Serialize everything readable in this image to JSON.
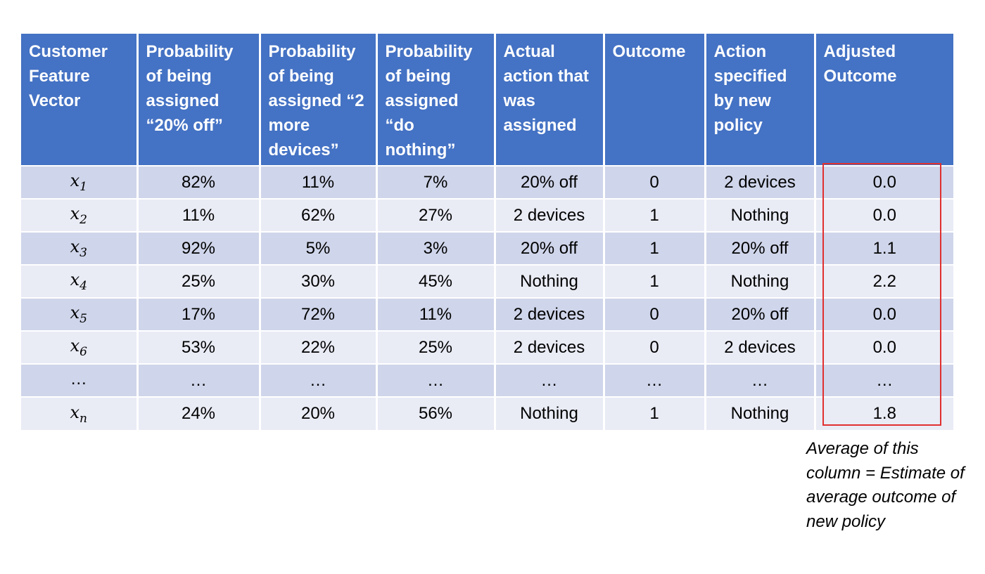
{
  "table": {
    "headers": [
      "Customer Feature Vector",
      "Probability of being assigned “20% off”",
      "Probability of being assigned “2 more devices”",
      "Probability of being assigned “do nothing”",
      "Actual action that was assigned",
      "Outcome",
      "Action specified by new policy",
      "Adjusted Outcome"
    ],
    "rows": [
      {
        "feature": {
          "var": "x",
          "sub": "1"
        },
        "p_20off": "82%",
        "p_2devices": "11%",
        "p_nothing": "7%",
        "actual_action": "20% off",
        "outcome": "0",
        "new_policy_action": "2 devices",
        "adjusted_outcome": "0.0"
      },
      {
        "feature": {
          "var": "x",
          "sub": "2"
        },
        "p_20off": "11%",
        "p_2devices": "62%",
        "p_nothing": "27%",
        "actual_action": "2 devices",
        "outcome": "1",
        "new_policy_action": "Nothing",
        "adjusted_outcome": "0.0"
      },
      {
        "feature": {
          "var": "x",
          "sub": "3"
        },
        "p_20off": "92%",
        "p_2devices": "5%",
        "p_nothing": "3%",
        "actual_action": "20% off",
        "outcome": "1",
        "new_policy_action": "20% off",
        "adjusted_outcome": "1.1"
      },
      {
        "feature": {
          "var": "x",
          "sub": "4"
        },
        "p_20off": "25%",
        "p_2devices": "30%",
        "p_nothing": "45%",
        "actual_action": "Nothing",
        "outcome": "1",
        "new_policy_action": "Nothing",
        "adjusted_outcome": "2.2"
      },
      {
        "feature": {
          "var": "x",
          "sub": "5"
        },
        "p_20off": "17%",
        "p_2devices": "72%",
        "p_nothing": "11%",
        "actual_action": "2 devices",
        "outcome": "0",
        "new_policy_action": "20% off",
        "adjusted_outcome": "0.0"
      },
      {
        "feature": {
          "var": "x",
          "sub": "6"
        },
        "p_20off": "53%",
        "p_2devices": "22%",
        "p_nothing": "25%",
        "actual_action": "2 devices",
        "outcome": "0",
        "new_policy_action": "2 devices",
        "adjusted_outcome": "0.0"
      },
      {
        "feature": {
          "var": "…",
          "sub": ""
        },
        "p_20off": "…",
        "p_2devices": "…",
        "p_nothing": "…",
        "actual_action": "…",
        "outcome": "…",
        "new_policy_action": "…",
        "adjusted_outcome": "…"
      },
      {
        "feature": {
          "var": "x",
          "sub": "n"
        },
        "p_20off": "24%",
        "p_2devices": "20%",
        "p_nothing": "56%",
        "actual_action": "Nothing",
        "outcome": "1",
        "new_policy_action": "Nothing",
        "adjusted_outcome": "1.8"
      }
    ]
  },
  "highlight": {
    "border_color": "#e03030"
  },
  "note": {
    "text": "Average of this column = Estimate of average outcome of new policy"
  },
  "colors": {
    "header_bg": "#4472c4",
    "row_dark": "#cfd5ea",
    "row_light": "#e9ebf5"
  }
}
